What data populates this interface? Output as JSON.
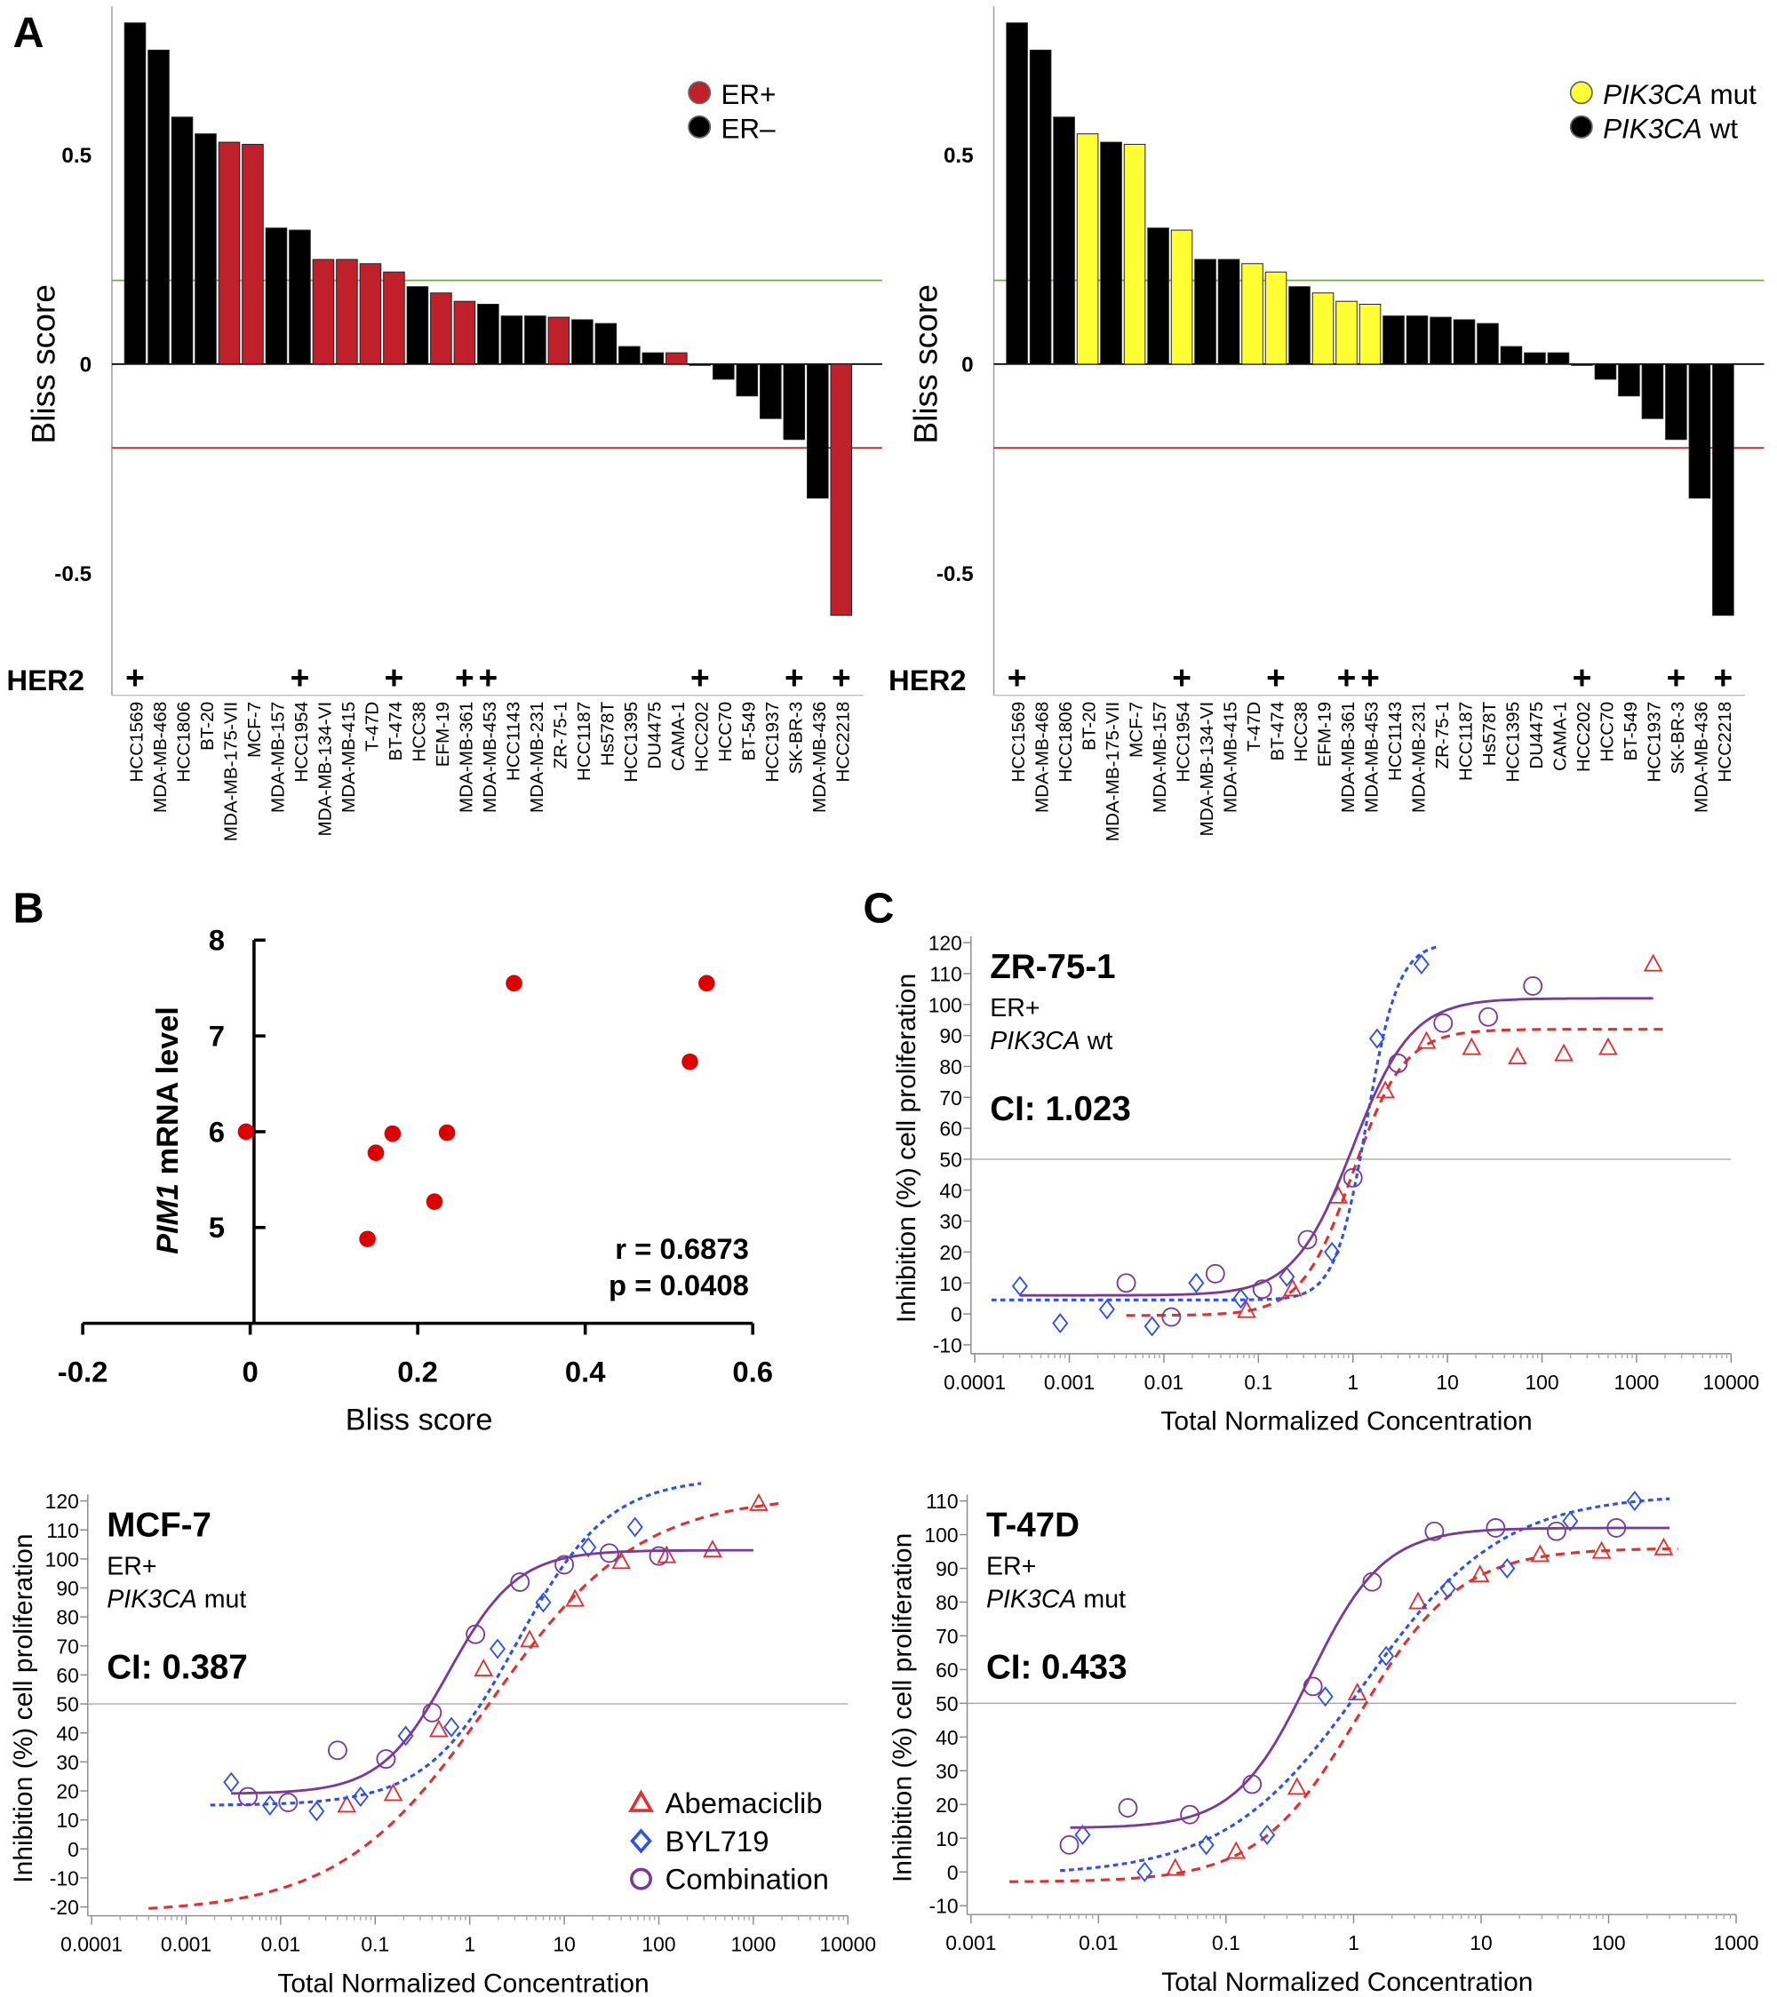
{
  "chart_data": [
    {
      "panel": "A",
      "type": "bar",
      "ylabel": "Bliss score",
      "yticks": [
        "0.5",
        "0",
        "-0.5"
      ],
      "ytick_values": [
        0.5,
        0,
        -0.5
      ],
      "ylim": [
        -0.8,
        0.85
      ],
      "threshold_lines": [
        {
          "value": 0.2,
          "color": "#6ab42d"
        },
        {
          "value": -0.2,
          "color": "#d42a2a"
        }
      ],
      "row_label": "HER2",
      "row_marker": "+",
      "legend": [
        {
          "label": "ER+",
          "color": "#c0202a"
        },
        {
          "label": "ER–",
          "color": "#000000"
        }
      ],
      "legend_placement": "top-right",
      "categories": [
        "HCC1569",
        "MDA-MB-468",
        "HCC1806",
        "BT-20",
        "MDA-MB-175-VII",
        "MCF-7",
        "MDA-MB-157",
        "HCC1954",
        "MDA-MB-134-VI",
        "MDA-MB-415",
        "T-47D",
        "BT-474",
        "HCC38",
        "EFM-19",
        "MDA-MB-361",
        "MDA-MB-453",
        "HCC1143",
        "MDA-MB-231",
        "ZR-75-1",
        "HCC1187",
        "Hs578T",
        "HCC1395",
        "DU4475",
        "CAMA-1",
        "HCC202",
        "HCC70",
        "BT-549",
        "HCC1937",
        "SK-BR-3",
        "MDA-MB-436",
        "HCC2218"
      ],
      "values": [
        0.815,
        0.75,
        0.59,
        0.55,
        0.53,
        0.525,
        0.325,
        0.32,
        0.25,
        0.25,
        0.24,
        0.22,
        0.185,
        0.17,
        0.15,
        0.143,
        0.115,
        0.115,
        0.112,
        0.106,
        0.097,
        0.042,
        0.027,
        0.027,
        -0.003,
        -0.036,
        -0.076,
        -0.13,
        -0.18,
        -0.32,
        -0.6
      ],
      "group": [
        "ER-",
        "ER-",
        "ER-",
        "ER-",
        "ER+",
        "ER+",
        "ER-",
        "ER-",
        "ER+",
        "ER+",
        "ER+",
        "ER+",
        "ER-",
        "ER+",
        "ER+",
        "ER-",
        "ER-",
        "ER-",
        "ER+",
        "ER-",
        "ER-",
        "ER-",
        "ER-",
        "ER+",
        "ER-",
        "ER-",
        "ER-",
        "ER-",
        "ER-",
        "ER-",
        "ER+"
      ],
      "her2_positive": [
        "HCC1569",
        "HCC1954",
        "BT-474",
        "MDA-MB-361",
        "MDA-MB-453",
        "HCC202",
        "SK-BR-3",
        "HCC2218"
      ]
    },
    {
      "panel": "A",
      "type": "bar",
      "ylabel": "Bliss score",
      "yticks": [
        "0.5",
        "0",
        "-0.5"
      ],
      "ytick_values": [
        0.5,
        0,
        -0.5
      ],
      "ylim": [
        -0.8,
        0.85
      ],
      "threshold_lines": [
        {
          "value": 0.2,
          "color": "#6ab42d"
        },
        {
          "value": -0.2,
          "color": "#d42a2a"
        }
      ],
      "row_label": "HER2",
      "row_marker": "+",
      "legend": [
        {
          "label": "PIK3CA",
          "suffix": " mut",
          "color": "#ffff33"
        },
        {
          "label": "PIK3CA",
          "suffix": " wt",
          "color": "#000000"
        }
      ],
      "legend_placement": "top-right",
      "categories": [
        "HCC1569",
        "MDA-MB-468",
        "HCC1806",
        "BT-20",
        "MDA-MB-175-VII",
        "MCF-7",
        "MDA-MB-157",
        "HCC1954",
        "MDA-MB-134-VI",
        "MDA-MB-415",
        "T-47D",
        "BT-474",
        "HCC38",
        "EFM-19",
        "MDA-MB-361",
        "MDA-MB-453",
        "HCC1143",
        "MDA-MB-231",
        "ZR-75-1",
        "HCC1187",
        "Hs578T",
        "HCC1395",
        "DU4475",
        "CAMA-1",
        "HCC202",
        "HCC70",
        "BT-549",
        "HCC1937",
        "SK-BR-3",
        "MDA-MB-436",
        "HCC2218"
      ],
      "values": [
        0.815,
        0.75,
        0.59,
        0.55,
        0.53,
        0.525,
        0.325,
        0.32,
        0.25,
        0.25,
        0.24,
        0.22,
        0.185,
        0.17,
        0.15,
        0.143,
        0.115,
        0.115,
        0.112,
        0.106,
        0.097,
        0.042,
        0.027,
        0.027,
        -0.003,
        -0.036,
        -0.076,
        -0.13,
        -0.18,
        -0.32,
        -0.6
      ],
      "group": [
        "wt",
        "wt",
        "wt",
        "mut",
        "wt",
        "mut",
        "wt",
        "mut",
        "wt",
        "wt",
        "mut",
        "mut",
        "wt",
        "mut",
        "mut",
        "mut",
        "wt",
        "wt",
        "wt",
        "wt",
        "wt",
        "wt",
        "wt",
        "wt",
        "wt",
        "wt",
        "wt",
        "wt",
        "wt",
        "wt",
        "wt"
      ],
      "her2_positive": [
        "HCC1569",
        "HCC1954",
        "BT-474",
        "MDA-MB-361",
        "MDA-MB-453",
        "HCC202",
        "SK-BR-3",
        "HCC2218"
      ]
    },
    {
      "panel": "B",
      "type": "scatter",
      "xlabel": "Bliss score",
      "ylabel_italic": "PIM1",
      "ylabel": " mRNA level",
      "xticks": [
        "-0.2",
        "0",
        "0.2",
        "0.4",
        "0.6"
      ],
      "xtick_values": [
        -0.2,
        0,
        0.2,
        0.4,
        0.6
      ],
      "yticks": [
        "5",
        "6",
        "7",
        "8"
      ],
      "ytick_values": [
        5,
        6,
        7,
        8
      ],
      "xlim": [
        -0.2,
        0.6
      ],
      "ylim": [
        4,
        8
      ],
      "color": "#dd0000",
      "points": [
        [
          -0.005,
          6.0
        ],
        [
          0.14,
          4.88
        ],
        [
          0.15,
          5.78
        ],
        [
          0.17,
          5.98
        ],
        [
          0.22,
          5.27
        ],
        [
          0.235,
          5.99
        ],
        [
          0.315,
          7.55
        ],
        [
          0.525,
          6.73
        ],
        [
          0.545,
          7.55
        ]
      ],
      "annotations": [
        "r =  0.6873",
        "p = 0.0408"
      ]
    },
    {
      "panel": "C",
      "type": "scatter",
      "title": "ZR-75-1",
      "subtitle": [
        "ER+"
      ],
      "subtitle_italic": "PIK3CA",
      "subtitle_suffix": " wt",
      "ci": "CI: 1.023",
      "xlabel": "Total Normalized Concentration",
      "ylabel": "Inhibition  (%)  cell proliferation",
      "xscale": "log",
      "xticks": [
        "0.0001",
        "0.001",
        "0.01",
        "0.1",
        "1",
        "10",
        "100",
        "1000",
        "10000"
      ],
      "xtick_values": [
        0.0001,
        0.001,
        0.01,
        0.1,
        1,
        10,
        100,
        1000,
        10000
      ],
      "yticks": [
        "120",
        "110",
        "100",
        "90",
        "80",
        "70",
        "60",
        "50",
        "40",
        "30",
        "20",
        "10",
        "0",
        "-10"
      ],
      "ytick_values": [
        120,
        110,
        100,
        90,
        80,
        70,
        60,
        50,
        40,
        30,
        20,
        10,
        0,
        -10
      ],
      "xlim": [
        0.0001,
        10000
      ],
      "ylim": [
        -10,
        120
      ],
      "reference_line": 50,
      "series": [
        {
          "name": "Abemaciclib",
          "marker": "triangle",
          "color": "#e03030",
          "line": "dashed",
          "points": [
            [
              0.075,
              1
            ],
            [
              0.23,
              8
            ],
            [
              0.7,
              38
            ],
            [
              2.2,
              72
            ],
            [
              6,
              88
            ],
            [
              18,
              86
            ],
            [
              55,
              83
            ],
            [
              170,
              84
            ],
            [
              500,
              86
            ],
            [
              1500,
              113
            ]
          ],
          "fit": {
            "bottom": -0.5,
            "top": 92,
            "ec50": 1.0,
            "hill": 1.6,
            "range": [
              0.004,
              2000
            ]
          }
        },
        {
          "name": "BYL719",
          "marker": "diamond",
          "color": "#3050e8",
          "line": "dotted",
          "points": [
            [
              0.0003,
              9
            ],
            [
              0.0008,
              -3
            ],
            [
              0.0025,
              1.5
            ],
            [
              0.0075,
              -4
            ],
            [
              0.022,
              10
            ],
            [
              0.065,
              5
            ],
            [
              0.2,
              12
            ],
            [
              0.6,
              20
            ],
            [
              1.8,
              89
            ],
            [
              5.3,
              113
            ]
          ],
          "fit": {
            "bottom": 4.5,
            "top": 120,
            "ec50": 1.4,
            "hill": 2.6,
            "range": [
              0.00015,
              8
            ]
          }
        },
        {
          "name": "Combination",
          "marker": "circle",
          "color": "#7a3a9a",
          "line": "solid",
          "points": [
            [
              0.004,
              10
            ],
            [
              0.012,
              -1
            ],
            [
              0.035,
              13
            ],
            [
              0.11,
              8
            ],
            [
              0.33,
              24
            ],
            [
              1,
              44
            ],
            [
              3,
              81
            ],
            [
              9,
              94
            ],
            [
              27,
              96
            ],
            [
              80,
              106
            ]
          ],
          "fit": {
            "bottom": 6,
            "top": 102,
            "ec50": 1.0,
            "hill": 1.4,
            "range": [
              0.0003,
              1500
            ]
          }
        }
      ]
    },
    {
      "panel": "C",
      "type": "scatter",
      "title": "MCF-7",
      "subtitle": [
        "ER+"
      ],
      "subtitle_italic": "PIK3CA",
      "subtitle_suffix": " mut",
      "ci": "CI: 0.387",
      "xlabel": "Total Normalized Concentration",
      "ylabel": "Inhibition  (%)  cell proliferation",
      "xscale": "log",
      "xticks": [
        "0.0001",
        "0.001",
        "0.01",
        "0.1",
        "1",
        "10",
        "100",
        "1000",
        "10000"
      ],
      "xtick_values": [
        0.0001,
        0.001,
        0.01,
        0.1,
        1,
        10,
        100,
        1000,
        10000
      ],
      "yticks": [
        "120",
        "110",
        "100",
        "90",
        "80",
        "70",
        "60",
        "50",
        "40",
        "30",
        "20",
        "10",
        "0",
        "-10",
        "-20"
      ],
      "ytick_values": [
        120,
        110,
        100,
        90,
        80,
        70,
        60,
        50,
        40,
        30,
        20,
        10,
        0,
        -10,
        -20
      ],
      "xlim": [
        0.0001,
        10000
      ],
      "ylim": [
        -20,
        120
      ],
      "reference_line": 50,
      "legend_placement": "bottom-right",
      "series": [
        {
          "name": "Abemaciclib",
          "marker": "triangle",
          "color": "#e03030",
          "line": "dashed",
          "points": [
            [
              0.05,
              15
            ],
            [
              0.155,
              19
            ],
            [
              0.47,
              41
            ],
            [
              1.4,
              62
            ],
            [
              4.3,
              72
            ],
            [
              13,
              86
            ],
            [
              40,
              99
            ],
            [
              121,
              101
            ],
            [
              370,
              103
            ],
            [
              1140,
              119
            ]
          ],
          "fit": {
            "bottom": -22,
            "top": 122,
            "ec50": 1.6,
            "hill": 0.55,
            "range": [
              0.0004,
              2000
            ]
          }
        },
        {
          "name": "BYL719",
          "marker": "diamond",
          "color": "#3050e8",
          "line": "dotted",
          "points": [
            [
              0.003,
              23
            ],
            [
              0.0077,
              15
            ],
            [
              0.024,
              13
            ],
            [
              0.07,
              18
            ],
            [
              0.21,
              39
            ],
            [
              0.64,
              42
            ],
            [
              1.97,
              69
            ],
            [
              6,
              85
            ],
            [
              18,
              104
            ],
            [
              56,
              111
            ]
          ],
          "fit": {
            "bottom": 15,
            "top": 128,
            "ec50": 3.2,
            "hill": 0.9,
            "range": [
              0.0018,
              280
            ]
          }
        },
        {
          "name": "Combination",
          "marker": "circle",
          "color": "#7a3a9a",
          "line": "solid",
          "points": [
            [
              0.0045,
              18
            ],
            [
              0.012,
              16
            ],
            [
              0.04,
              34
            ],
            [
              0.13,
              31
            ],
            [
              0.4,
              47
            ],
            [
              1.15,
              74
            ],
            [
              3.4,
              92
            ],
            [
              10,
              98
            ],
            [
              30,
              102
            ],
            [
              100,
              101
            ]
          ],
          "fit": {
            "bottom": 19,
            "top": 103,
            "ec50": 0.6,
            "hill": 1.2,
            "range": [
              0.003,
              1000
            ]
          }
        }
      ]
    },
    {
      "panel": "C",
      "type": "scatter",
      "title": "T-47D",
      "subtitle": [
        "ER+"
      ],
      "subtitle_italic": "PIK3CA",
      "subtitle_suffix": " mut",
      "ci": "CI: 0.433",
      "xlabel": "Total Normalized Concentration",
      "ylabel": "Inhibition  (%)  cell proliferation",
      "xscale": "log",
      "xticks": [
        "0.001",
        "0.01",
        "0.1",
        "1",
        "10",
        "100",
        "1000"
      ],
      "xtick_values": [
        0.001,
        0.01,
        0.1,
        1,
        10,
        100,
        1000
      ],
      "yticks": [
        "110",
        "100",
        "90",
        "80",
        "70",
        "60",
        "50",
        "40",
        "30",
        "20",
        "10",
        "0",
        "-10"
      ],
      "ytick_values": [
        110,
        100,
        90,
        80,
        70,
        60,
        50,
        40,
        30,
        20,
        10,
        0,
        -10
      ],
      "xlim": [
        0.001,
        1000
      ],
      "ylim": [
        -10,
        110
      ],
      "reference_line": 50,
      "series": [
        {
          "name": "Abemaciclib",
          "marker": "triangle",
          "color": "#e03030",
          "line": "dashed",
          "points": [
            [
              0.04,
              1
            ],
            [
              0.12,
              6
            ],
            [
              0.36,
              25
            ],
            [
              1.07,
              53
            ],
            [
              3.2,
              80
            ],
            [
              9.8,
              88
            ],
            [
              29,
              94
            ],
            [
              88,
              95
            ],
            [
              270,
              96
            ]
          ],
          "fit": {
            "bottom": -3,
            "top": 96,
            "ec50": 1.1,
            "hill": 1.1,
            "range": [
              0.002,
              350
            ]
          }
        },
        {
          "name": "BYL719",
          "marker": "diamond",
          "color": "#3050e8",
          "line": "dotted",
          "points": [
            [
              0.0075,
              11
            ],
            [
              0.023,
              0
            ],
            [
              0.07,
              8
            ],
            [
              0.21,
              11
            ],
            [
              0.6,
              52
            ],
            [
              1.8,
              64
            ],
            [
              5.5,
              84
            ],
            [
              16,
              90
            ],
            [
              50,
              104
            ],
            [
              160,
              110
            ]
          ],
          "fit": {
            "bottom": -1,
            "top": 112,
            "ec50": 1.2,
            "hill": 0.8,
            "range": [
              0.005,
              300
            ]
          }
        },
        {
          "name": "Combination",
          "marker": "circle",
          "color": "#7a3a9a",
          "line": "solid",
          "points": [
            [
              0.0059,
              8
            ],
            [
              0.017,
              19
            ],
            [
              0.052,
              17
            ],
            [
              0.16,
              26
            ],
            [
              0.48,
              55
            ],
            [
              1.4,
              86
            ],
            [
              4.3,
              101
            ],
            [
              13,
              102
            ],
            [
              39,
              101
            ],
            [
              115,
              102
            ]
          ],
          "fit": {
            "bottom": 13,
            "top": 102,
            "ec50": 0.45,
            "hill": 1.5,
            "range": [
              0.006,
              300
            ]
          }
        }
      ]
    }
  ],
  "panel_labels": [
    "A",
    "B",
    "C"
  ]
}
